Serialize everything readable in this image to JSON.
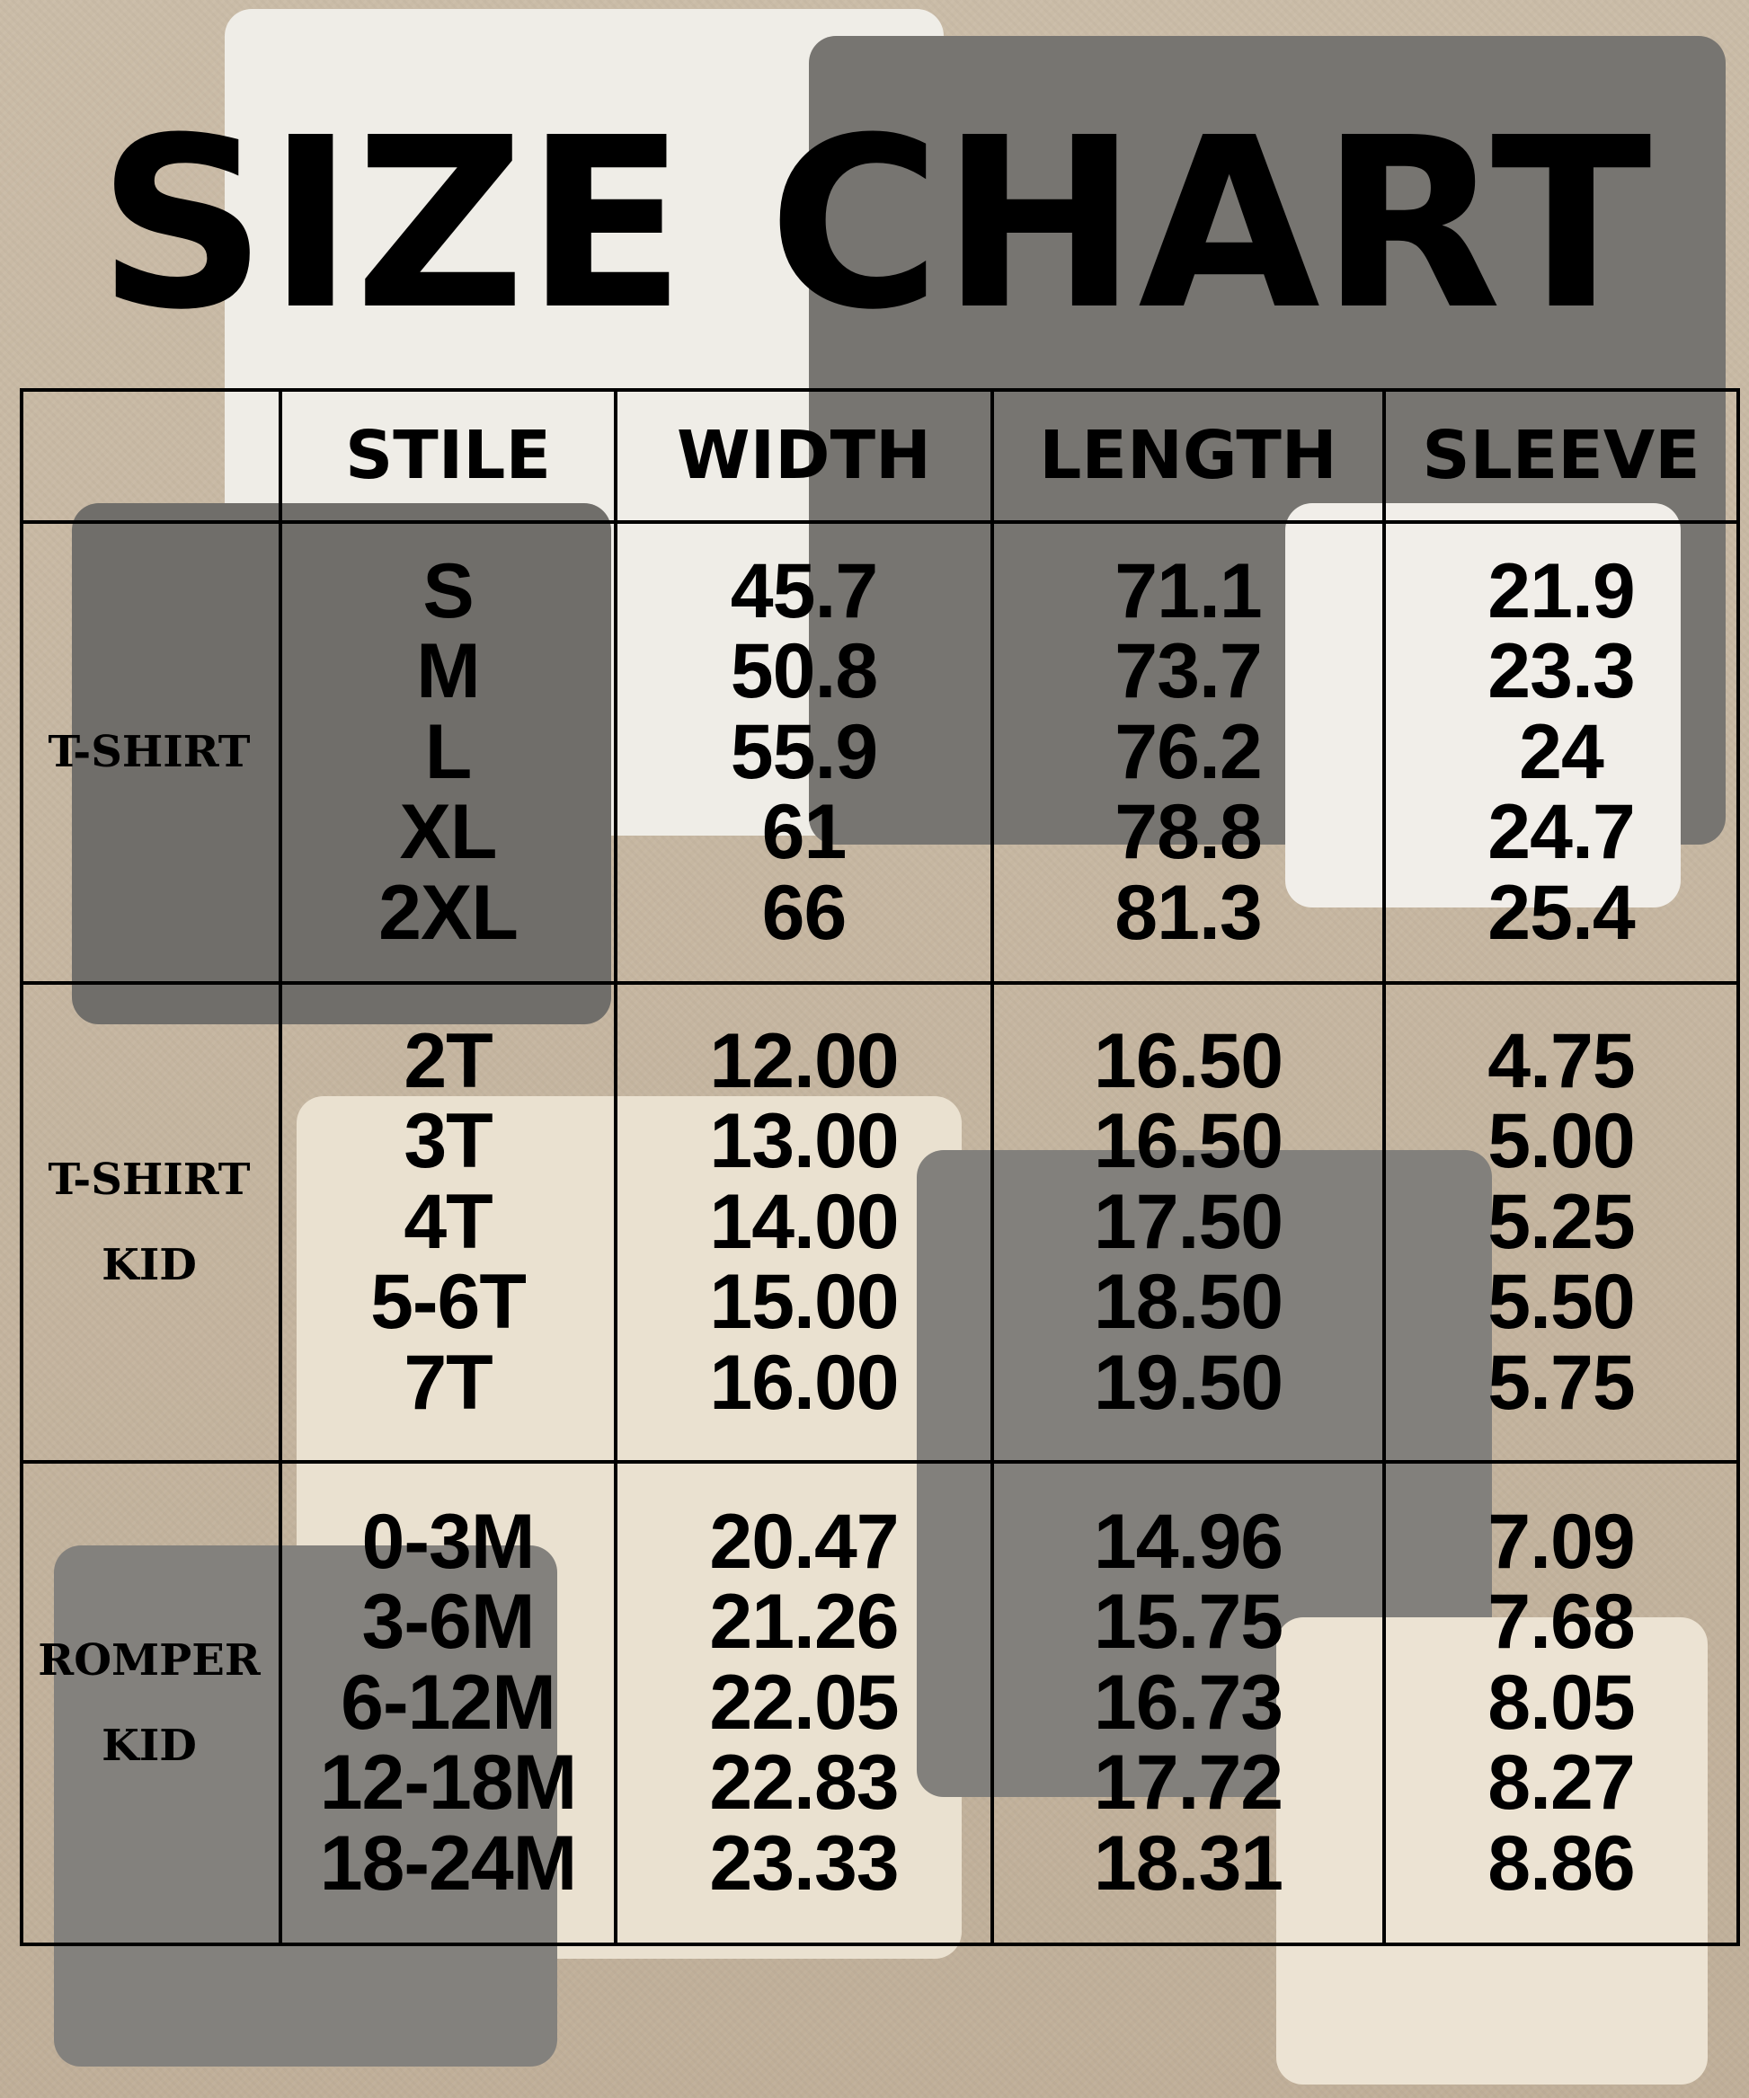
{
  "title": "SIZE CHART",
  "headers": [
    "STILE",
    "WIDTH",
    "LENGTH",
    "SLEEVE"
  ],
  "groups": [
    {
      "label": "T-SHIRT",
      "stile": [
        "S",
        "M",
        "L",
        "XL",
        "2XL"
      ],
      "width": [
        "45.7",
        "50.8",
        "55.9",
        "61",
        "66"
      ],
      "length": [
        "71.1",
        "73.7",
        "76.2",
        "78.8",
        "81.3"
      ],
      "sleeve": [
        "21.9",
        "23.3",
        "24",
        "24.7",
        "25.4"
      ]
    },
    {
      "label": "T-SHIRT\nKID",
      "stile": [
        "2T",
        "3T",
        "4T",
        "5-6T",
        "7T"
      ],
      "width": [
        "12.00",
        "13.00",
        "14.00",
        "15.00",
        "16.00"
      ],
      "length": [
        "16.50",
        "16.50",
        "17.50",
        "18.50",
        "19.50"
      ],
      "sleeve": [
        "4.75",
        "5.00",
        "5.25",
        "5.50",
        "5.75"
      ]
    },
    {
      "label": "ROMPER\nKID",
      "stile": [
        "0-3M",
        "3-6M",
        "6-12M",
        "12-18M",
        "18-24M"
      ],
      "width": [
        "20.47",
        "21.26",
        "22.05",
        "22.83",
        "23.33"
      ],
      "length": [
        "14.96",
        "15.75",
        "16.73",
        "17.72",
        "18.31"
      ],
      "sleeve": [
        "7.09",
        "7.68",
        "8.05",
        "8.27",
        "8.86"
      ]
    }
  ]
}
